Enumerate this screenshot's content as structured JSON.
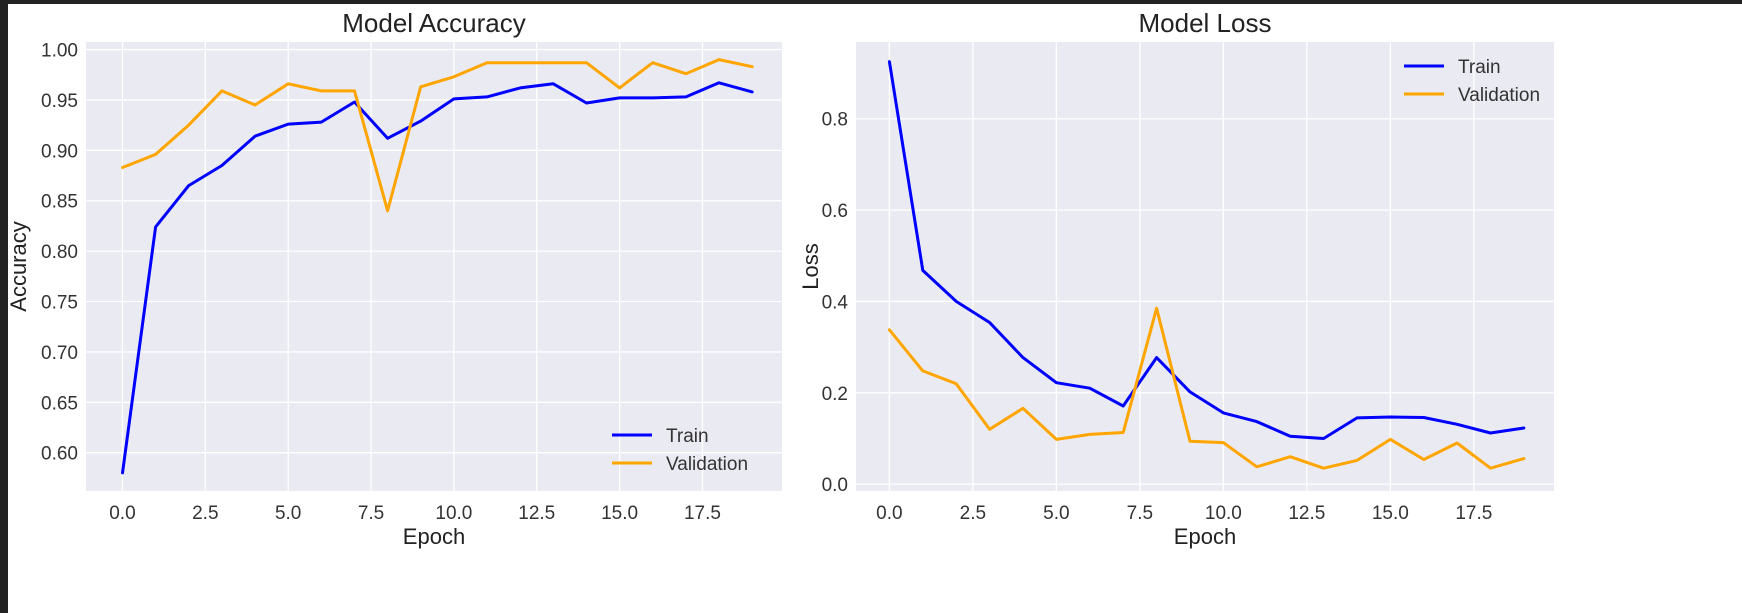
{
  "colors": {
    "train": "#0000ff",
    "validation": "#ffa500",
    "plot_background": "#eaeaf2",
    "grid": "#ffffff"
  },
  "chart_data": [
    {
      "type": "line",
      "title": "Model Accuracy",
      "xlabel": "Epoch",
      "ylabel": "Accuracy",
      "xlim": [
        -1.1,
        19.9
      ],
      "ylim": [
        0.562,
        1.0075
      ],
      "xticks": [
        0,
        2.5,
        5,
        7.5,
        10,
        12.5,
        15,
        17.5
      ],
      "xtick_labels": [
        "0.0",
        "2.5",
        "5.0",
        "7.5",
        "10.0",
        "12.5",
        "15.0",
        "17.5"
      ],
      "yticks": [
        0.6,
        0.65,
        0.7,
        0.75,
        0.8,
        0.85,
        0.9,
        0.95,
        1.0
      ],
      "ytick_labels": [
        "0.60",
        "0.65",
        "0.70",
        "0.75",
        "0.80",
        "0.85",
        "0.90",
        "0.95",
        "1.00"
      ],
      "grid": true,
      "legend": "lower-right",
      "x": [
        0,
        1,
        2,
        3,
        4,
        5,
        6,
        7,
        8,
        9,
        10,
        11,
        12,
        13,
        14,
        15,
        16,
        17,
        18,
        19
      ],
      "series": [
        {
          "name": "Train",
          "color": "#0000ff",
          "values": [
            0.58,
            0.824,
            0.865,
            0.885,
            0.914,
            0.926,
            0.928,
            0.948,
            0.912,
            0.929,
            0.951,
            0.953,
            0.962,
            0.966,
            0.947,
            0.952,
            0.952,
            0.953,
            0.967,
            0.958
          ]
        },
        {
          "name": "Validation",
          "color": "#ffa500",
          "values": [
            0.883,
            0.896,
            0.925,
            0.959,
            0.945,
            0.966,
            0.959,
            0.959,
            0.84,
            0.963,
            0.973,
            0.987,
            0.987,
            0.987,
            0.987,
            0.962,
            0.987,
            0.976,
            0.99,
            0.983
          ]
        }
      ]
    },
    {
      "type": "line",
      "title": "Model Loss",
      "xlabel": "Epoch",
      "ylabel": "Loss",
      "xlim": [
        -1.0,
        19.9
      ],
      "ylim": [
        -0.015,
        0.968
      ],
      "xticks": [
        0,
        2.5,
        5,
        7.5,
        10,
        12.5,
        15,
        17.5
      ],
      "xtick_labels": [
        "0.0",
        "2.5",
        "5.0",
        "7.5",
        "10.0",
        "12.5",
        "15.0",
        "17.5"
      ],
      "yticks": [
        0.0,
        0.2,
        0.4,
        0.6,
        0.8
      ],
      "ytick_labels": [
        "0.0",
        "0.2",
        "0.4",
        "0.6",
        "0.8"
      ],
      "grid": true,
      "legend": "upper-right",
      "x": [
        0,
        1,
        2,
        3,
        4,
        5,
        6,
        7,
        8,
        9,
        10,
        11,
        12,
        13,
        14,
        15,
        16,
        17,
        18,
        19
      ],
      "series": [
        {
          "name": "Train",
          "color": "#0000ff",
          "values": [
            0.925,
            0.468,
            0.4,
            0.354,
            0.277,
            0.222,
            0.21,
            0.171,
            0.277,
            0.202,
            0.156,
            0.137,
            0.105,
            0.1,
            0.145,
            0.147,
            0.146,
            0.131,
            0.112,
            0.123
          ]
        },
        {
          "name": "Validation",
          "color": "#ffa500",
          "values": [
            0.338,
            0.248,
            0.22,
            0.12,
            0.166,
            0.098,
            0.109,
            0.113,
            0.385,
            0.094,
            0.091,
            0.038,
            0.06,
            0.035,
            0.052,
            0.098,
            0.054,
            0.09,
            0.035,
            0.056
          ]
        }
      ]
    }
  ]
}
